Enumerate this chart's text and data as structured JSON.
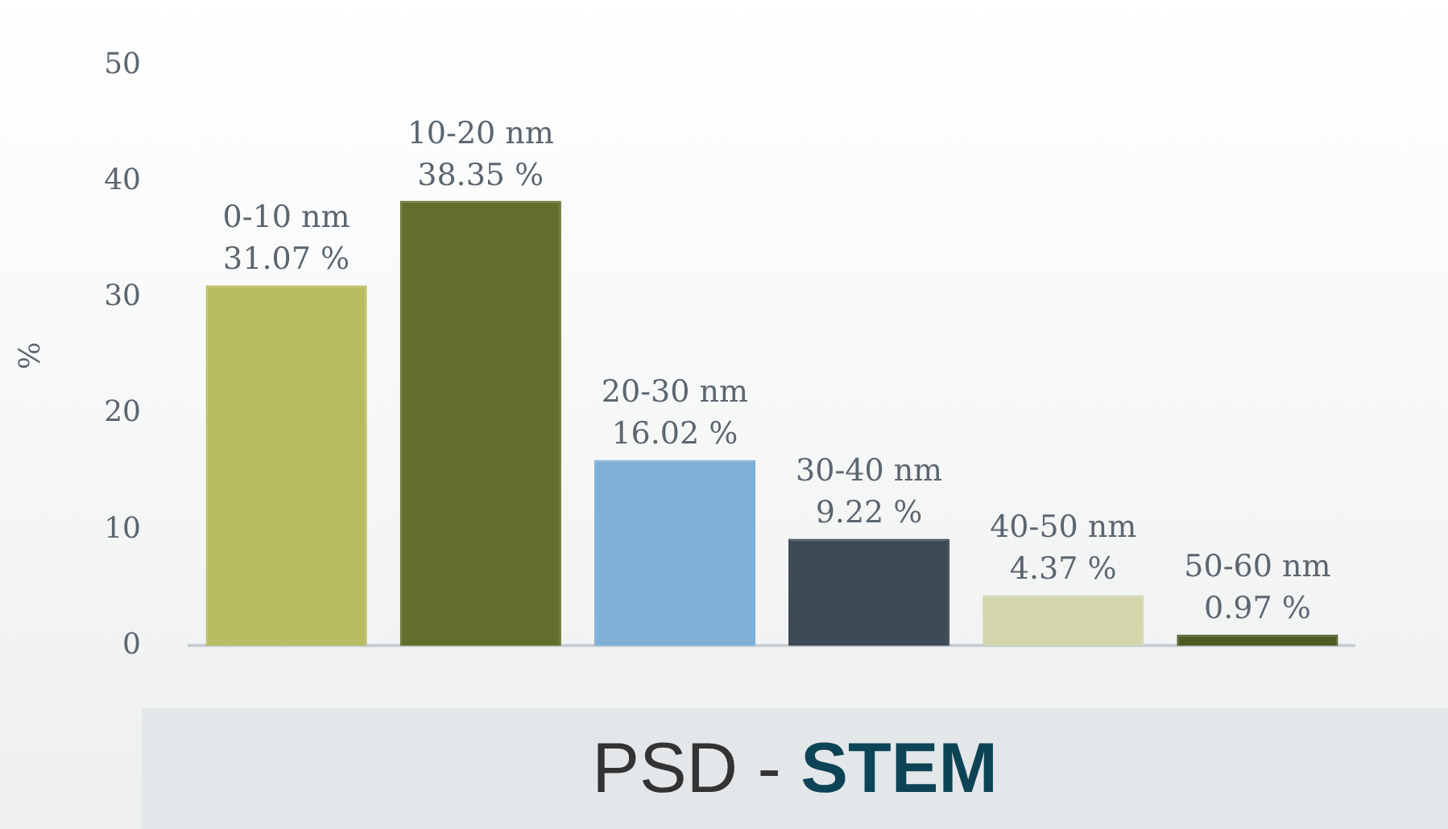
{
  "chart_data": {
    "type": "bar",
    "title": "PSD - STEM",
    "ylabel": "%",
    "categories": [
      "0-10 nm",
      "10-20 nm",
      "20-30 nm",
      "30-40 nm",
      "40-50 nm",
      "50-60 nm"
    ],
    "values": [
      31.07,
      38.35,
      16.02,
      9.22,
      4.37,
      0.97
    ],
    "value_labels": [
      "31.07 %",
      "38.35 %",
      "16.02 %",
      "9.22 %",
      "4.37 %",
      "0.97 %"
    ],
    "colors": [
      "#b9bb62",
      "#626f2c",
      "#7fb0d6",
      "#3e4b57",
      "#d3d6ad",
      "#4d5a22"
    ],
    "ylim": [
      0,
      50
    ],
    "yticks": [
      0,
      10,
      20,
      30,
      40,
      50
    ],
    "grid": false,
    "legend": false
  }
}
